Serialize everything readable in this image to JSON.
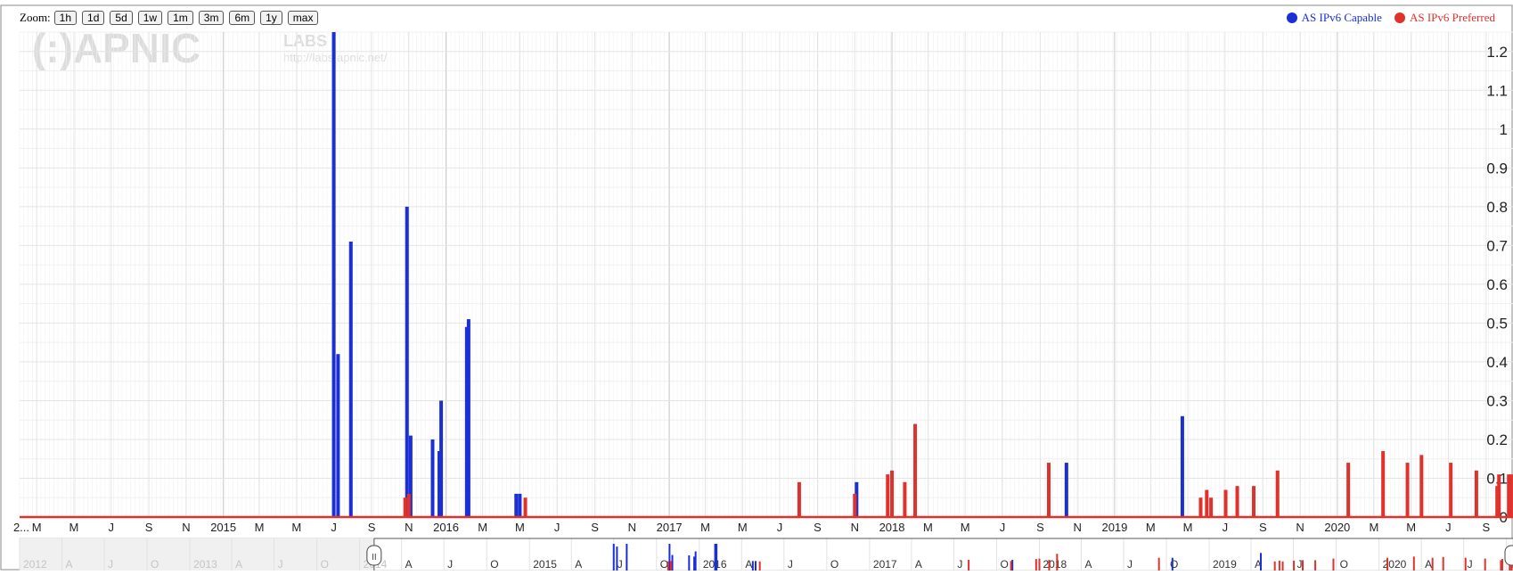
{
  "zoom": {
    "label": "Zoom:",
    "buttons": [
      "1h",
      "1d",
      "5d",
      "1w",
      "1m",
      "3m",
      "6m",
      "1y",
      "max"
    ]
  },
  "colors": {
    "capable": "#1a2fd6",
    "preferred": "#e0322d",
    "grid": "#e4e4e4",
    "major_grid": "#c9c9c9"
  },
  "watermark": {
    "logo": "(:)APNIC",
    "labs": "LABS",
    "url": "http://labs.apnic.net/"
  },
  "chart_data": {
    "type": "bar",
    "x_type": "date",
    "xlim": [
      "2014-02-01",
      "2020-10-15"
    ],
    "ylim": [
      0,
      1.25
    ],
    "y_ticks": [
      0,
      0.1,
      0.2,
      0.3,
      0.4,
      0.5,
      0.6,
      0.7,
      0.8,
      0.9,
      1,
      1.1,
      1.2
    ],
    "y_tick_labels": [
      "0",
      "0.1",
      "0.2",
      "0.3",
      "0.4",
      "0.5",
      "0.6",
      "0.7",
      "0.8",
      "0.9",
      "1",
      "1.1",
      "1.2"
    ],
    "legend_position": "top-right",
    "grid": true,
    "x_ticks": [
      {
        "date": "2014-02-01",
        "label": "2..."
      },
      {
        "date": "2014-03-01",
        "label": "M"
      },
      {
        "date": "2014-05-01",
        "label": "M"
      },
      {
        "date": "2014-07-01",
        "label": "J"
      },
      {
        "date": "2014-09-01",
        "label": "S"
      },
      {
        "date": "2014-11-01",
        "label": "N"
      },
      {
        "date": "2015-01-01",
        "label": "2015"
      },
      {
        "date": "2015-03-01",
        "label": "M"
      },
      {
        "date": "2015-05-01",
        "label": "M"
      },
      {
        "date": "2015-07-01",
        "label": "J"
      },
      {
        "date": "2015-09-01",
        "label": "S"
      },
      {
        "date": "2015-11-01",
        "label": "N"
      },
      {
        "date": "2016-01-01",
        "label": "2016"
      },
      {
        "date": "2016-03-01",
        "label": "M"
      },
      {
        "date": "2016-05-01",
        "label": "M"
      },
      {
        "date": "2016-07-01",
        "label": "J"
      },
      {
        "date": "2016-09-01",
        "label": "S"
      },
      {
        "date": "2016-11-01",
        "label": "N"
      },
      {
        "date": "2017-01-01",
        "label": "2017"
      },
      {
        "date": "2017-03-01",
        "label": "M"
      },
      {
        "date": "2017-05-01",
        "label": "M"
      },
      {
        "date": "2017-07-01",
        "label": "J"
      },
      {
        "date": "2017-09-01",
        "label": "S"
      },
      {
        "date": "2017-11-01",
        "label": "N"
      },
      {
        "date": "2018-01-01",
        "label": "2018"
      },
      {
        "date": "2018-03-01",
        "label": "M"
      },
      {
        "date": "2018-05-01",
        "label": "M"
      },
      {
        "date": "2018-07-01",
        "label": "J"
      },
      {
        "date": "2018-09-01",
        "label": "S"
      },
      {
        "date": "2018-11-01",
        "label": "N"
      },
      {
        "date": "2019-01-01",
        "label": "2019"
      },
      {
        "date": "2019-03-01",
        "label": "M"
      },
      {
        "date": "2019-05-01",
        "label": "M"
      },
      {
        "date": "2019-07-01",
        "label": "J"
      },
      {
        "date": "2019-09-01",
        "label": "S"
      },
      {
        "date": "2019-11-01",
        "label": "N"
      },
      {
        "date": "2020-01-01",
        "label": "2020"
      },
      {
        "date": "2020-03-01",
        "label": "M"
      },
      {
        "date": "2020-05-01",
        "label": "M"
      },
      {
        "date": "2020-07-01",
        "label": "J"
      },
      {
        "date": "2020-09-01",
        "label": "S"
      }
    ],
    "series": [
      {
        "name": "AS IPv6 Capable",
        "color": "#1a2fd6",
        "points": [
          [
            "2015-07-01",
            1.25
          ],
          [
            "2015-07-08",
            0.42
          ],
          [
            "2015-07-29",
            0.71
          ],
          [
            "2015-10-29",
            0.8
          ],
          [
            "2015-11-04",
            0.21
          ],
          [
            "2015-12-10",
            0.2
          ],
          [
            "2015-12-21",
            0.17
          ],
          [
            "2015-12-24",
            0.3
          ],
          [
            "2016-02-04",
            0.49
          ],
          [
            "2016-02-07",
            0.51
          ],
          [
            "2016-04-25",
            0.06
          ],
          [
            "2016-05-01",
            0.06
          ],
          [
            "2017-11-04",
            0.09
          ],
          [
            "2018-10-14",
            0.14
          ],
          [
            "2019-04-22",
            0.26
          ]
        ]
      },
      {
        "name": "AS IPv6 Preferred",
        "color": "#e0322d",
        "points": [
          [
            "2015-10-26",
            0.05
          ],
          [
            "2015-11-01",
            0.06
          ],
          [
            "2016-05-10",
            0.05
          ],
          [
            "2017-08-02",
            0.09
          ],
          [
            "2017-11-01",
            0.06
          ],
          [
            "2017-12-25",
            0.11
          ],
          [
            "2018-01-01",
            0.12
          ],
          [
            "2018-01-22",
            0.09
          ],
          [
            "2018-02-08",
            0.24
          ],
          [
            "2018-09-15",
            0.14
          ],
          [
            "2019-05-22",
            0.05
          ],
          [
            "2019-06-01",
            0.07
          ],
          [
            "2019-06-08",
            0.05
          ],
          [
            "2019-07-02",
            0.07
          ],
          [
            "2019-07-21",
            0.08
          ],
          [
            "2019-08-17",
            0.08
          ],
          [
            "2019-09-25",
            0.12
          ],
          [
            "2020-01-19",
            0.14
          ],
          [
            "2020-03-16",
            0.17
          ],
          [
            "2020-04-25",
            0.14
          ],
          [
            "2020-05-18",
            0.16
          ],
          [
            "2020-07-05",
            0.14
          ],
          [
            "2020-08-16",
            0.12
          ],
          [
            "2020-09-19",
            0.08
          ],
          [
            "2020-09-22",
            0.11
          ],
          [
            "2020-10-08",
            0.11
          ],
          [
            "2020-10-12",
            0.11
          ]
        ]
      }
    ]
  },
  "navigator": {
    "xlim": [
      "2012-01-01",
      "2020-10-15"
    ],
    "selection": [
      "2014-02-01",
      "2020-10-15"
    ],
    "handle_label": "II",
    "labels": [
      {
        "date": "2012-01-01",
        "label": "2012",
        "dim": true
      },
      {
        "date": "2012-04-01",
        "label": "A",
        "dim": true
      },
      {
        "date": "2012-07-01",
        "label": "J",
        "dim": true
      },
      {
        "date": "2012-10-01",
        "label": "O",
        "dim": true
      },
      {
        "date": "2013-01-01",
        "label": "2013",
        "dim": true
      },
      {
        "date": "2013-04-01",
        "label": "A",
        "dim": true
      },
      {
        "date": "2013-07-01",
        "label": "J",
        "dim": true
      },
      {
        "date": "2013-10-01",
        "label": "O",
        "dim": true
      },
      {
        "date": "2014-01-01",
        "label": "2014",
        "dim": true
      },
      {
        "date": "2014-04-01",
        "label": "A",
        "dim": false
      },
      {
        "date": "2014-07-01",
        "label": "J",
        "dim": false
      },
      {
        "date": "2014-10-01",
        "label": "O",
        "dim": false
      },
      {
        "date": "2015-01-01",
        "label": "2015",
        "dim": false
      },
      {
        "date": "2015-04-01",
        "label": "A",
        "dim": false
      },
      {
        "date": "2015-07-01",
        "label": "J",
        "dim": false
      },
      {
        "date": "2015-10-01",
        "label": "O",
        "dim": false
      },
      {
        "date": "2016-01-01",
        "label": "2016",
        "dim": false
      },
      {
        "date": "2016-04-01",
        "label": "A",
        "dim": false
      },
      {
        "date": "2016-07-01",
        "label": "J",
        "dim": false
      },
      {
        "date": "2016-10-01",
        "label": "O",
        "dim": false
      },
      {
        "date": "2017-01-01",
        "label": "2017",
        "dim": false
      },
      {
        "date": "2017-04-01",
        "label": "A",
        "dim": false
      },
      {
        "date": "2017-07-01",
        "label": "J",
        "dim": false
      },
      {
        "date": "2017-10-01",
        "label": "O",
        "dim": false
      },
      {
        "date": "2018-01-01",
        "label": "2018",
        "dim": false
      },
      {
        "date": "2018-04-01",
        "label": "A",
        "dim": false
      },
      {
        "date": "2018-07-01",
        "label": "J",
        "dim": false
      },
      {
        "date": "2018-10-01",
        "label": "O",
        "dim": false
      },
      {
        "date": "2019-01-01",
        "label": "2019",
        "dim": false
      },
      {
        "date": "2019-04-01",
        "label": "A",
        "dim": false
      },
      {
        "date": "2019-07-01",
        "label": "J",
        "dim": false
      },
      {
        "date": "2019-10-01",
        "label": "O",
        "dim": false
      },
      {
        "date": "2020-01-01",
        "label": "2020",
        "dim": false
      },
      {
        "date": "2020-04-01",
        "label": "A",
        "dim": false
      },
      {
        "date": "2020-07-01",
        "label": "J",
        "dim": false
      },
      {
        "date": "2020-10-01",
        "label": "O",
        "dim": false
      }
    ]
  }
}
